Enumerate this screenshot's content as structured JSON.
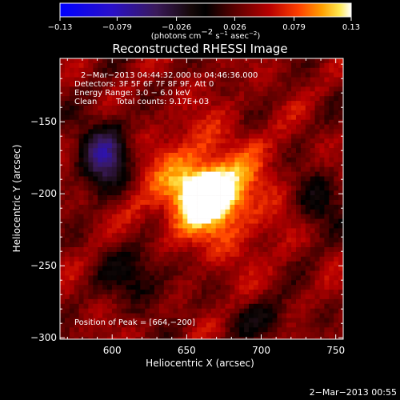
{
  "chart_data": {
    "type": "heatmap",
    "title": "Reconstructed RHESSI Image",
    "xlabel": "Heliocentric X (arcsec)",
    "ylabel": "Heliocentric Y (arcsec)",
    "xlim": [
      565,
      755
    ],
    "ylim": [
      -301,
      -106
    ],
    "x_ticks": [
      600,
      650,
      700,
      750
    ],
    "y_ticks": [
      -150,
      -200,
      -250,
      -300
    ],
    "x_tick_labels": [
      "600",
      "650",
      "700",
      "750"
    ],
    "y_tick_labels": [
      "−150",
      "−200",
      "−250",
      "−300"
    ],
    "colorbar": {
      "range": [
        -0.13,
        0.13
      ],
      "ticks": [
        -0.13,
        -0.079,
        -0.026,
        0.026,
        0.079,
        0.13
      ],
      "tick_labels": [
        "−0.13",
        "−0.079",
        "−0.026",
        "0.026",
        "0.079",
        "0.13"
      ],
      "unit_parts": [
        "(photons cm",
        "−2",
        " s",
        "−1",
        " asec",
        "−2",
        ")"
      ],
      "colormap": "rainbow-blue-purple-red-yellow-white"
    },
    "annotations": {
      "time_range": "2−Mar−2013 04:44:32.000 to 04:46:36.000",
      "detectors": "Detectors: 3F 5F 6F 7F 8F 9F, Att 0",
      "energy": "Energy Range: 3.0 − 6.0 keV",
      "clean": "Clean",
      "counts": "Total counts: 9.17E+03",
      "peak": "Position of Peak = [664,−200]"
    },
    "peak": {
      "x": 664,
      "y": -200,
      "value": 0.13
    }
  },
  "footer": {
    "timestamp": "2−Mar−2013 00:55"
  }
}
